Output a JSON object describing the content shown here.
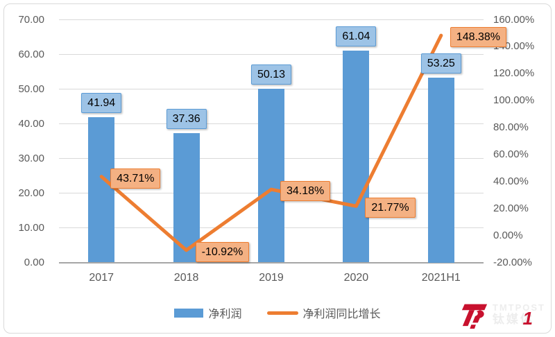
{
  "chart_data": {
    "type": "combo-bar-line",
    "title": "",
    "categories": [
      "2017",
      "2018",
      "2019",
      "2020",
      "2021H1"
    ],
    "series": [
      {
        "name": "净利润",
        "type": "bar",
        "axis": "left",
        "values": [
          41.94,
          37.36,
          50.13,
          61.04,
          53.25
        ],
        "data_labels": [
          "41.94",
          "37.36",
          "50.13",
          "61.04",
          "53.25"
        ],
        "bar_color": "#5B9BD5",
        "label_fill": "#9DC3E6",
        "label_border": "#5B9BD5"
      },
      {
        "name": "净利润同比增长",
        "type": "line",
        "axis": "right",
        "values": [
          43.71,
          -10.92,
          34.18,
          21.77,
          148.38
        ],
        "data_labels": [
          "43.71%",
          "-10.92%",
          "34.18%",
          "21.77%",
          "148.38%"
        ],
        "line_color": "#ED7D31",
        "label_fill": "#F4B183",
        "label_border": "#ED7D31"
      }
    ],
    "left_axis": {
      "min": 0,
      "max": 70,
      "step": 10,
      "ticks": [
        "70.00",
        "60.00",
        "50.00",
        "40.00",
        "30.00",
        "20.00",
        "10.00",
        "0.00"
      ]
    },
    "right_axis": {
      "min": -20,
      "max": 160,
      "step": 20,
      "ticks": [
        "160.00%",
        "140.00%",
        "120.00%",
        "100.00%",
        "80.00%",
        "60.00%",
        "40.00%",
        "20.00%",
        "0.00%",
        "-20.00%"
      ]
    },
    "grid": true,
    "legend_position": "bottom"
  },
  "legend": {
    "items": [
      {
        "label": "净利润",
        "swatch_type": "bar",
        "color": "#5B9BD5"
      },
      {
        "label": "净利润同比增长",
        "swatch_type": "line",
        "color": "#ED7D31"
      }
    ]
  },
  "watermark": {
    "brand_en": "TMTPOST",
    "brand_cn": "钛媒体",
    "overlay_digit": "1",
    "logo_color": "#C8112E"
  },
  "colors": {
    "background": "#FFFFFF",
    "frame_border": "#D9D9D9",
    "grid": "#D9D9D9",
    "axis_line": "#A6A6A6",
    "tick_text": "#595959",
    "data_label_text": "#000000"
  }
}
